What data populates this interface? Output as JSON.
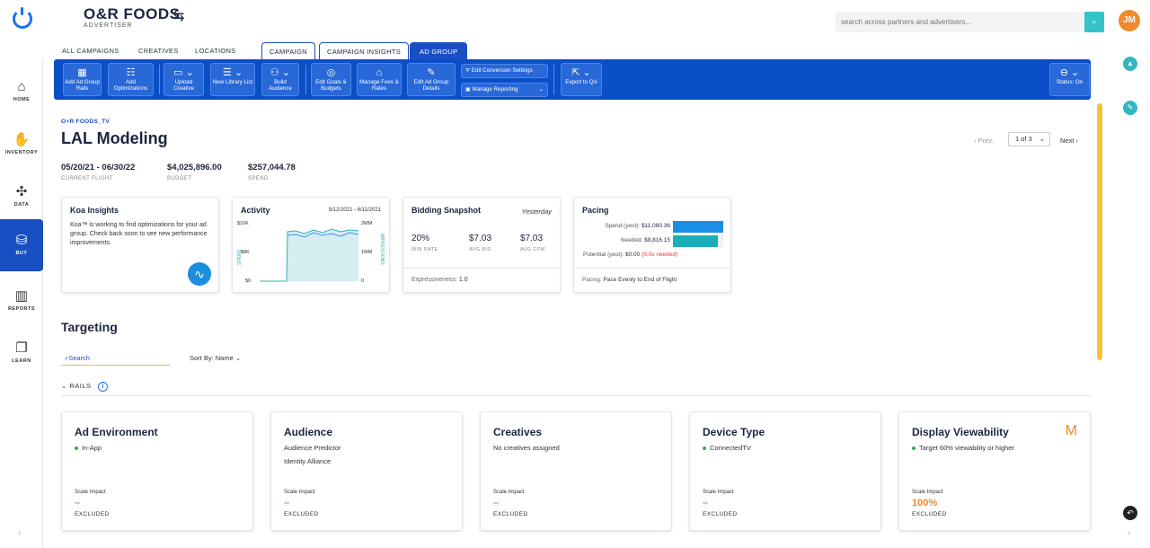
{
  "brand": {
    "name": "O&R FOODS",
    "role": "ADVERTISER"
  },
  "search": {
    "placeholder": "search across partners and advertisers..."
  },
  "user": {
    "initials": "JM"
  },
  "sidebar": [
    {
      "label": "HOME",
      "icon": "⌂"
    },
    {
      "label": "INVENTORY",
      "icon": "✋"
    },
    {
      "label": "DATA",
      "icon": "✣"
    },
    {
      "label": "BUY",
      "icon": "⛁"
    },
    {
      "label": "REPORTS",
      "icon": "▥"
    },
    {
      "label": "LEARN",
      "icon": "❐"
    }
  ],
  "tabs": [
    "ALL CAMPAIGNS",
    "CREATIVES",
    "LOCATIONS",
    "CAMPAIGN",
    "CAMPAIGN INSIGHTS",
    "AD GROUP"
  ],
  "toolbar": {
    "add_rails": "Add Ad Group Rails",
    "add_opt": "Add Optimizations",
    "upload": "Upload Creative",
    "new_lib": "New Library List",
    "build_aud": "Build Audience",
    "edit_goals": "Edit Goals & Budgets",
    "manage_fees": "Manage Fees & Rates",
    "edit_details": "Edit Ad Group Details",
    "edit_conv": "Edit Conversion Settings",
    "manage_rep": "Manage Reporting",
    "export": "Export to QA",
    "status": "Status: On"
  },
  "page": {
    "eyebrow": "O+R FOODS_TV",
    "title": "LAL Modeling",
    "pager_prev": "‹ Prev.",
    "pager_sel": "1 of 3",
    "pager_next": "Next ›",
    "flight": "05/20/21 - 06/30/22",
    "flight_l": "CURRENT FLIGHT",
    "budget": "$4,025,896.00",
    "budget_l": "BUDGET",
    "spend": "$257,044.78",
    "spend_l": "SPEND"
  },
  "koa": {
    "title": "Koa Insights",
    "body": "Koa™ is working to find optimizations for your ad group. Check back soon to see new performance improvements."
  },
  "activity": {
    "title": "Activity",
    "range": "5/12/2021 - 6/11/2021",
    "y1": [
      "$16K",
      "$8K",
      "$0"
    ],
    "y2": [
      "2MM",
      "1MM",
      "0"
    ],
    "lab_l": "SPEND",
    "lab_r": "IMPRESSIONS"
  },
  "bidding": {
    "title": "Bidding Snapshot",
    "when": "Yesterday",
    "win": "20%",
    "win_l": "WIN RATE",
    "bid": "$7.03",
    "bid_l": "AVG BID",
    "cpm": "$7.03",
    "cpm_l": "AVG CPM",
    "expr": "Expressiveness:",
    "expr_v": "1.0"
  },
  "pacing": {
    "title": "Pacing",
    "spend_l": "Spend (yest):",
    "spend_v": "$11,080.36",
    "spend_frac": 1.0,
    "needed_l": "Needed:",
    "needed_v": "$9,816.15",
    "needed_frac": 0.89,
    "pot_l": "Potential (yest):",
    "pot_v": "$0.00",
    "pot_n": "(0.0x needed)",
    "foot_l": "Pacing:",
    "foot_v": "Pace Evenly to End of Flight"
  },
  "targeting": {
    "title": "Targeting",
    "search": "Search",
    "sort": "Sort By: Name",
    "rails": "RAILS"
  },
  "rails": [
    {
      "title": "Ad Environment",
      "d1": "In-App",
      "d1dot": true,
      "d2": "",
      "sc_l": "Scale Impact",
      "sc_v": "–",
      "ex": "EXCLUDED"
    },
    {
      "title": "Audience",
      "d1": "Audience Predictor",
      "d1dot": false,
      "d2": "Identity Alliance",
      "sc_l": "Scale Impact",
      "sc_v": "–",
      "ex": "EXCLUDED"
    },
    {
      "title": "Creatives",
      "d1": "No creatives assigned",
      "d1dot": false,
      "d2": "",
      "sc_l": "Scale Impact",
      "sc_v": "–",
      "ex": "EXCLUDED"
    },
    {
      "title": "Device Type",
      "d1": "ConnectedTV",
      "d1dot": true,
      "d2": "",
      "sc_l": "Scale Impact",
      "sc_v": "–",
      "ex": "EXCLUDED"
    },
    {
      "title": "Display Viewability",
      "d1": "Target 60% viewability or higher",
      "d1dot": true,
      "d2": "",
      "sc_l": "Scale Impact",
      "sc_v": "100%",
      "ex": "EXCLUDED"
    }
  ],
  "colors": {
    "primary": "#0b4fc7",
    "accent": "#34c3c9",
    "orange": "#f0892b",
    "scroll": "#f4c430"
  }
}
